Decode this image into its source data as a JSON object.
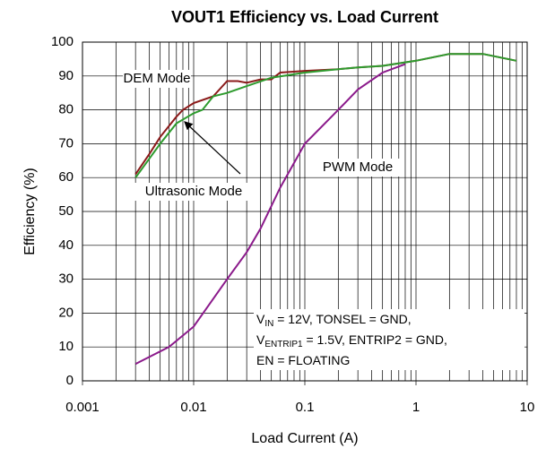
{
  "chart_data": {
    "type": "line",
    "title": "VOUT1 Efficiency vs. Load Current",
    "xlabel": "Load Current (A)",
    "ylabel": "Efficiency (%)",
    "xscale": "log",
    "xlim": [
      0.001,
      10
    ],
    "xticks": [
      0.001,
      0.01,
      0.1,
      1,
      10
    ],
    "ylim": [
      0,
      100
    ],
    "yticks": [
      0,
      10,
      20,
      30,
      40,
      50,
      60,
      70,
      80,
      90,
      100
    ],
    "grid": true,
    "minor_grid": true,
    "series": [
      {
        "name": "DEM Mode",
        "color": "#8b1a1a",
        "x": [
          0.003,
          0.004,
          0.005,
          0.007,
          0.008,
          0.01,
          0.015,
          0.02,
          0.025,
          0.03,
          0.04,
          0.05,
          0.06,
          0.1,
          0.2,
          0.3,
          0.5,
          1,
          2,
          4,
          8
        ],
        "values": [
          61,
          67,
          72,
          78,
          80,
          82,
          84,
          88.5,
          88.5,
          88,
          89,
          89,
          91,
          91.5,
          92,
          92.5,
          93,
          94.5,
          96.5,
          96.5,
          94.5
        ]
      },
      {
        "name": "Ultrasonic Mode",
        "color": "#2e9b2e",
        "x": [
          0.003,
          0.005,
          0.007,
          0.01,
          0.012,
          0.015,
          0.02,
          0.03,
          0.05,
          0.1,
          0.2,
          0.3,
          0.5,
          1,
          2,
          4,
          8
        ],
        "values": [
          60,
          70,
          76,
          79,
          80,
          84,
          85,
          87,
          89.5,
          91,
          92,
          92.5,
          93,
          94.5,
          96.5,
          96.5,
          94.5
        ]
      },
      {
        "name": "PWM Mode",
        "color": "#8b1a8b",
        "x": [
          0.003,
          0.006,
          0.01,
          0.02,
          0.03,
          0.04,
          0.06,
          0.1,
          0.2,
          0.3,
          0.5,
          0.8
        ],
        "values": [
          5,
          10,
          16,
          30,
          38,
          45,
          57,
          70,
          80,
          86,
          91,
          93.5
        ]
      }
    ],
    "conditions": [
      [
        "V",
        "IN",
        " = 12V, TONSEL = GND,"
      ],
      [
        "V",
        "ENTRIP1",
        " = 1.5V, ENTRIP2 = GND,"
      ],
      [
        "EN = FLOATING"
      ]
    ]
  }
}
